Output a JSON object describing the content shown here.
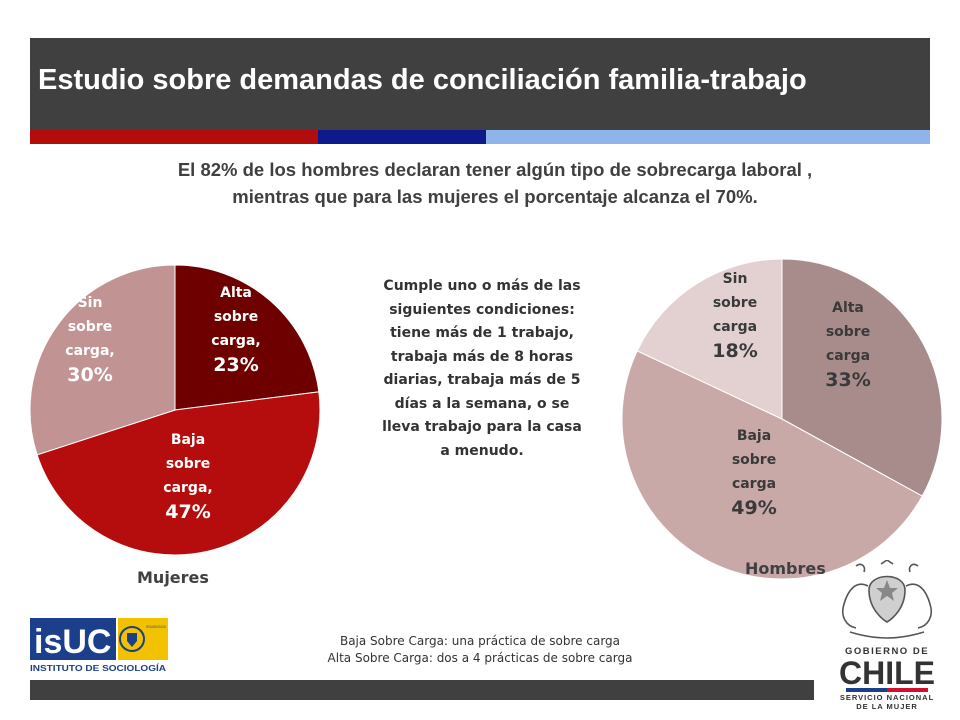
{
  "header": {
    "title": "Estudio sobre demandas de conciliación familia-trabajo",
    "colors": {
      "bar": "#404040",
      "stripe_red": "#b30c0c",
      "stripe_blue": "#0d1a8a",
      "stripe_light": "#8fb4ea"
    }
  },
  "subtitle": {
    "line1": "El 82% de los hombres declaran tener algún tipo de sobrecarga laboral ,",
    "line2": "mientras que para las mujeres el porcentaje alcanza el 70%."
  },
  "note": "Cumple uno o más de las siguientes condiciones: tiene más de 1 trabajo, trabaja más de 8 horas diarias, trabaja más de 5 días a la semana, o se lleva trabajo para la casa a menudo.",
  "footnote": {
    "line1": "Baja Sobre Carga: una práctica de sobre carga",
    "line2": "Alta Sobre Carga: dos a 4 prácticas de sobre carga"
  },
  "logos": {
    "isuc_main": "isUC",
    "isuc_sub": "INSTITUTO DE SOCIOLOGÍA",
    "isuc_seal_text": "PONTIFICIA UNIVERSIDAD CATÓLICA DE CHILE",
    "gob_line1": "GOBIERNO DE",
    "gob_chile": "CHILE",
    "gob_line3": "SERVICIO NACIONAL",
    "gob_line4": "DE LA MUJER"
  },
  "chart_data": [
    {
      "type": "pie",
      "caption": "Mujeres",
      "slices": [
        {
          "line1": "Alta",
          "line2": "sobre",
          "line3": "carga,",
          "pct_label": "23%",
          "value": 23,
          "color": "#6e0000"
        },
        {
          "line1": "Baja",
          "line2": "sobre",
          "line3": "carga,",
          "pct_label": "47%",
          "value": 47,
          "color": "#b50d0d"
        },
        {
          "line1": "Sin",
          "line2": "sobre",
          "line3": "carga,",
          "pct_label": "30%",
          "value": 30,
          "color": "#c29393"
        }
      ]
    },
    {
      "type": "pie",
      "caption": "Hombres",
      "slices": [
        {
          "line1": "Alta",
          "line2": "sobre",
          "line3": "carga",
          "pct_label": "33%",
          "value": 33,
          "color": "#a88c8c"
        },
        {
          "line1": "Baja",
          "line2": "sobre",
          "line3": "carga",
          "pct_label": "49%",
          "value": 49,
          "color": "#c9a8a8"
        },
        {
          "line1": "Sin",
          "line2": "sobre",
          "line3": "carga",
          "pct_label": "18%",
          "value": 18,
          "color": "#e3d1d1"
        }
      ]
    }
  ]
}
